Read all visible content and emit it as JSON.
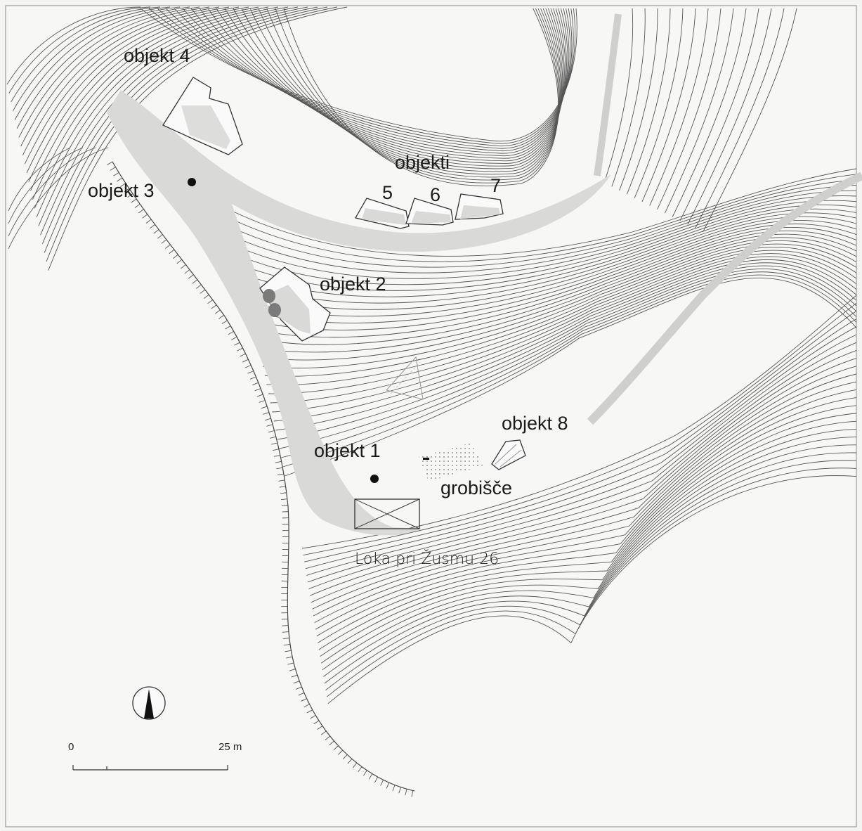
{
  "labels": {
    "objekt4": "objekt 4",
    "objekt3": "objekt 3",
    "objekti": "objekti",
    "n5": "5",
    "n6": "6",
    "n7": "7",
    "objekt2": "objekt 2",
    "objekt8": "objekt 8",
    "objekt1": "objekt 1",
    "grobisce": "grobišče",
    "house": "Loka pri Žusmu 26"
  },
  "scale": {
    "zero": "0",
    "end": "25 m"
  },
  "colors": {
    "contour": "#555555",
    "path": "#d9d9d7",
    "ink": "#1a1a1a",
    "background": "#f4f4f2"
  },
  "icons": {
    "north_arrow": "north-arrow-icon"
  }
}
